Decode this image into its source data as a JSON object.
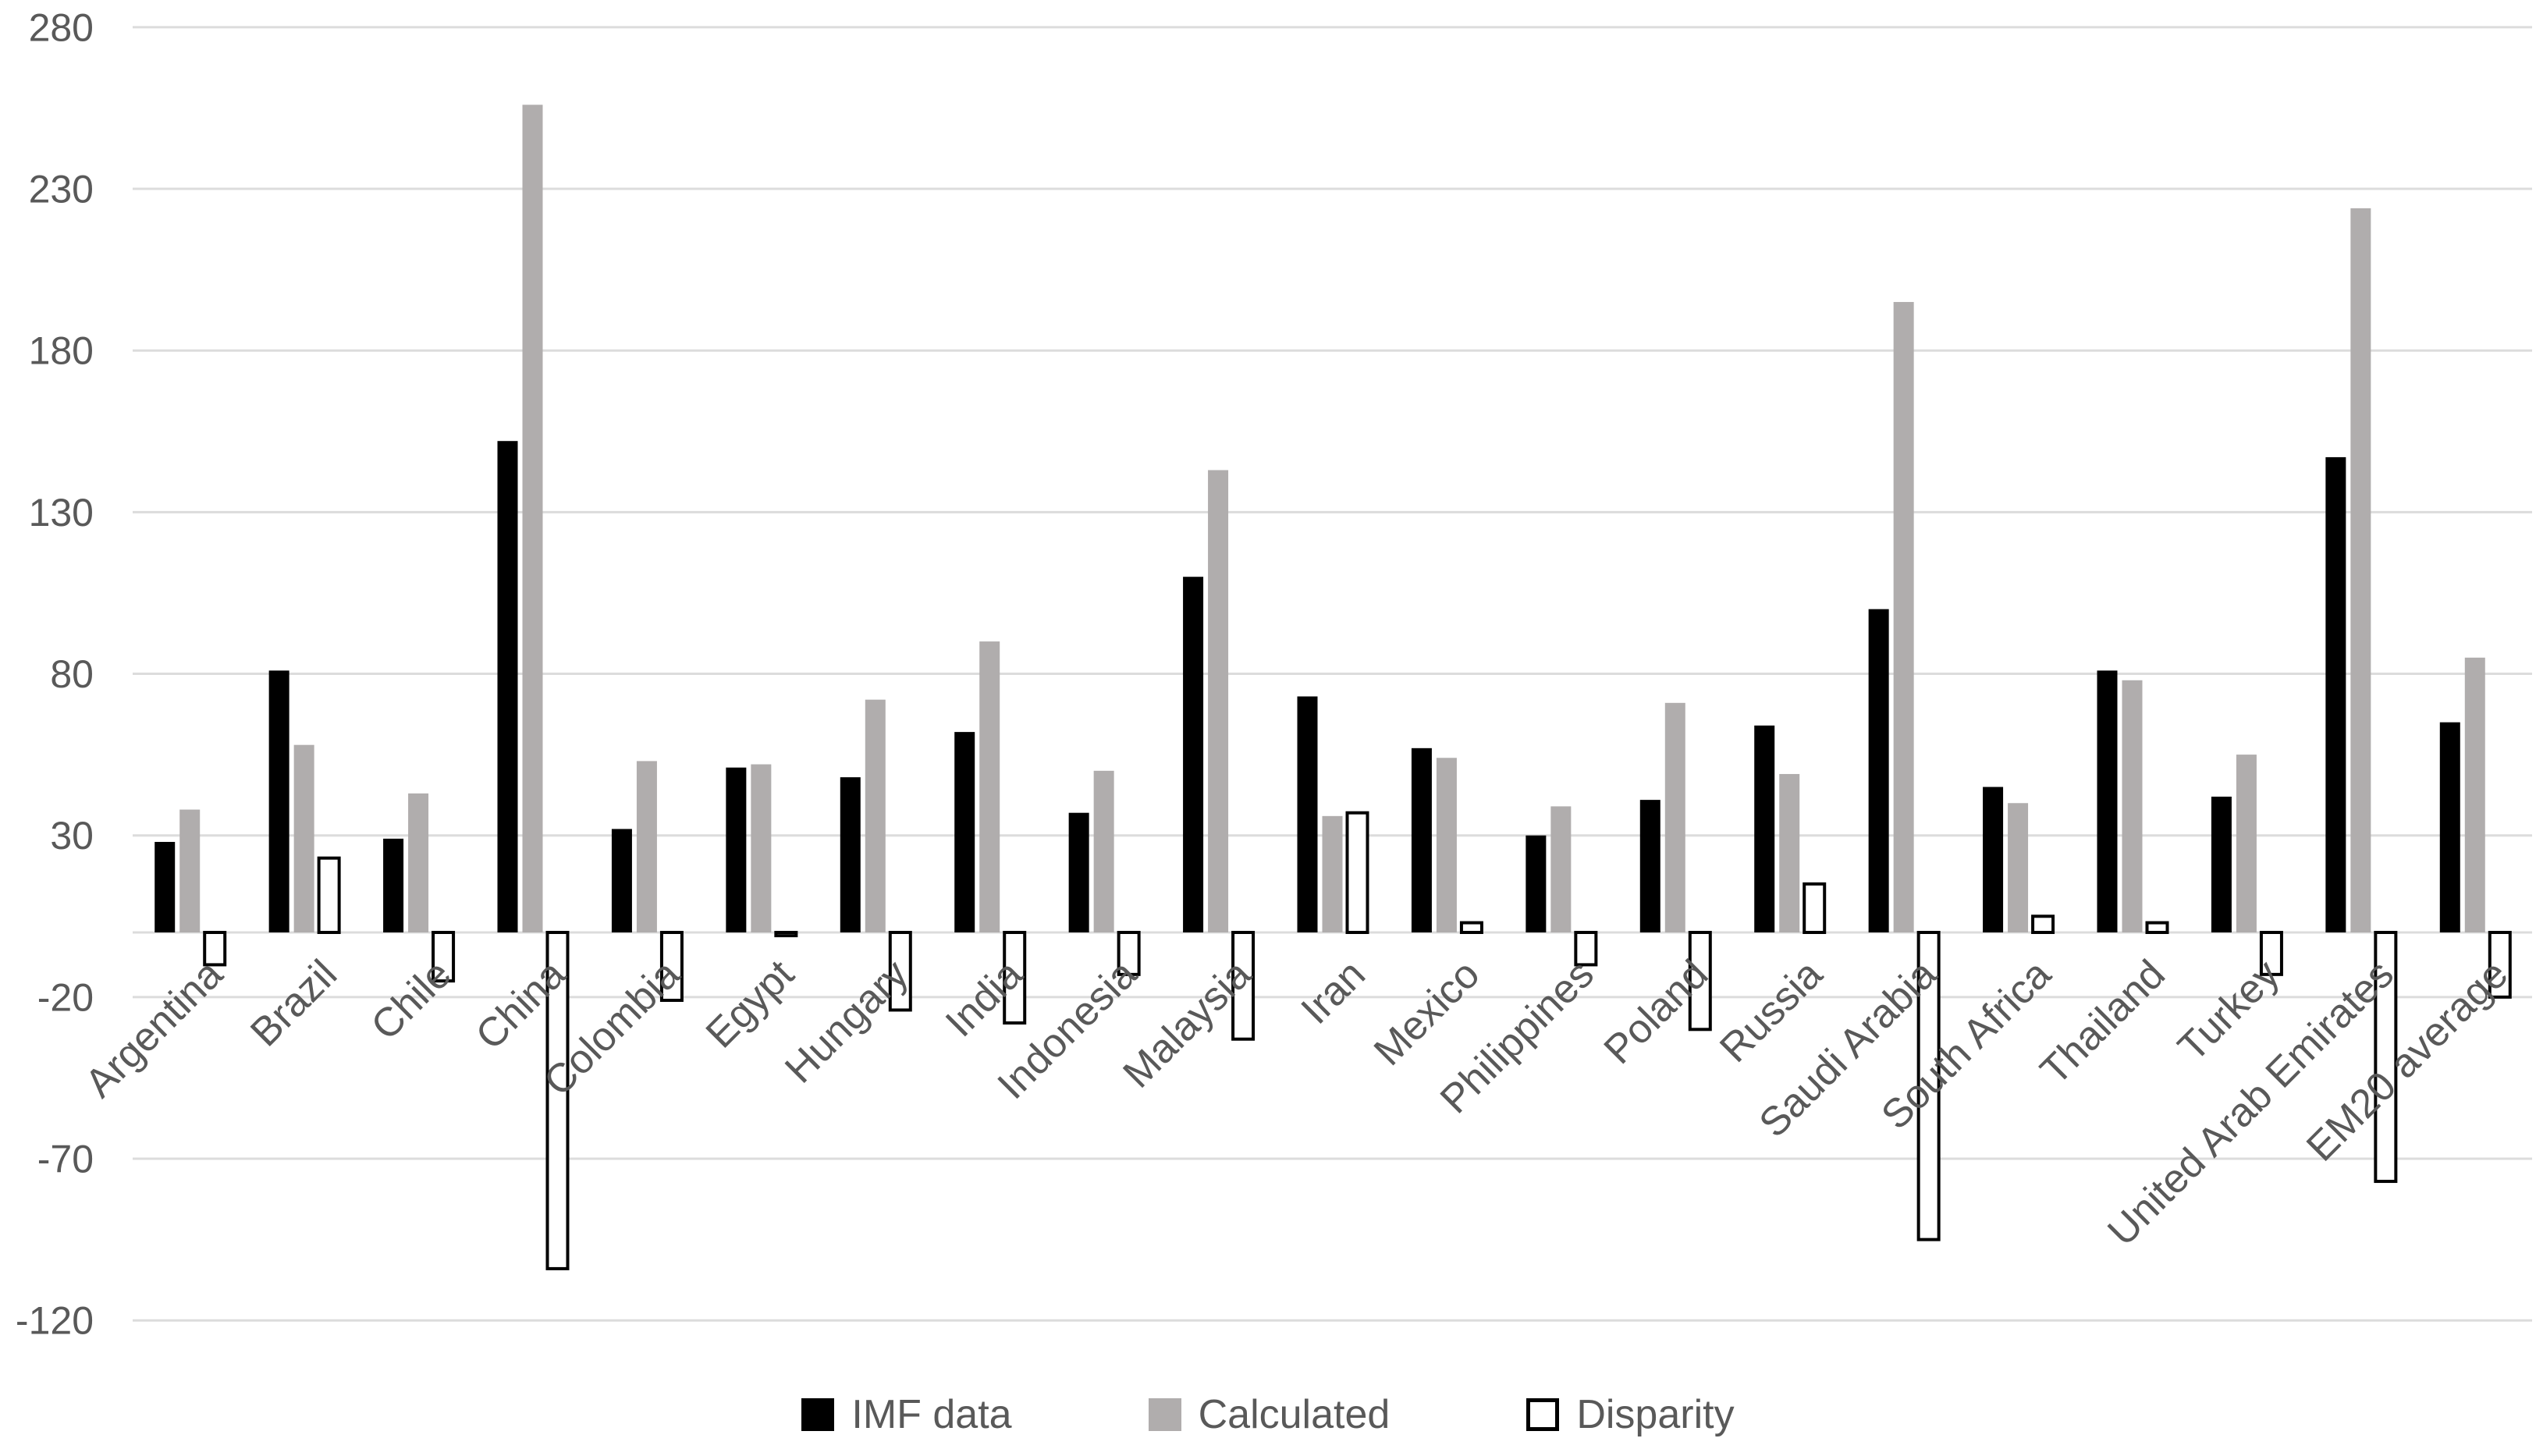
{
  "chart_data": {
    "type": "bar",
    "title": "",
    "xlabel": "",
    "ylabel": "",
    "ylim": [
      -120,
      280
    ],
    "yticks": [
      280,
      230,
      180,
      130,
      80,
      30,
      -20,
      -70,
      -120
    ],
    "grid": true,
    "legend_position": "bottom",
    "background_color": "#ffffff",
    "gridline_color": "#dcdcdc",
    "axis_label_color": "#595959",
    "categories": [
      "Argentina",
      "Brazil",
      "Chile",
      "China",
      "Colombia",
      "Egypt",
      "Hungary",
      "India",
      "Indonesia",
      "Malaysia",
      "Iran",
      "Mexico",
      "Philippines",
      "Poland",
      "Russia",
      "Saudi Arabia",
      "South Africa",
      "Thailand",
      "Turkey",
      "United Arab Emirates",
      "EM20 average"
    ],
    "series": [
      {
        "name": "IMF data",
        "fill": "#000000",
        "stroke": "none",
        "values": [
          28,
          81,
          29,
          152,
          32,
          51,
          48,
          62,
          37,
          110,
          73,
          57,
          30,
          41,
          64,
          100,
          45,
          81,
          42,
          147,
          65
        ]
      },
      {
        "name": "Calculated",
        "fill": "#b0adad",
        "stroke": "none",
        "values": [
          38,
          58,
          43,
          256,
          53,
          52,
          72,
          90,
          50,
          143,
          36,
          54,
          39,
          71,
          49,
          195,
          40,
          78,
          55,
          224,
          85
        ]
      },
      {
        "name": "Disparity",
        "fill": "#ffffff",
        "stroke": "#000000",
        "values": [
          -10,
          23,
          -15,
          -104,
          -21,
          -1,
          -24,
          -28,
          -13,
          -33,
          37,
          3,
          -10,
          -30,
          15,
          -95,
          5,
          3,
          -13,
          -77,
          -20
        ]
      }
    ]
  },
  "legend": {
    "items": [
      {
        "label": "IMF data"
      },
      {
        "label": "Calculated"
      },
      {
        "label": "Disparity"
      }
    ]
  }
}
